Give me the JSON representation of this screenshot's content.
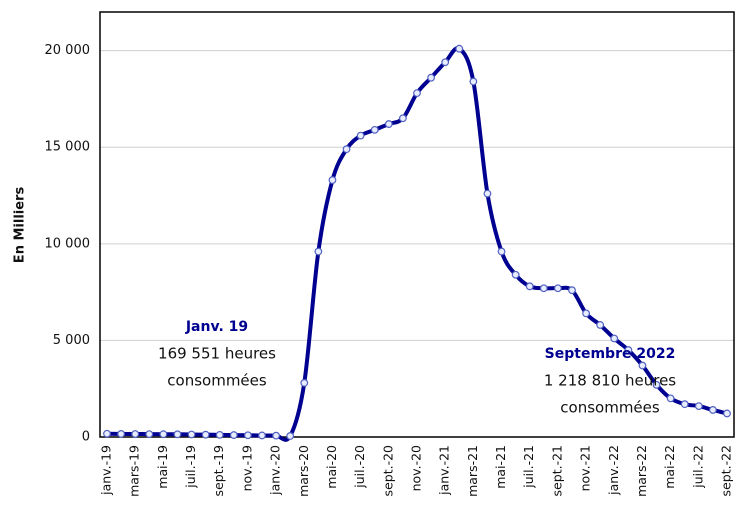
{
  "chart_data": {
    "type": "line",
    "y_label": "En Milliers",
    "categories": [
      "janv.-19",
      null,
      "mars-19",
      null,
      "mai-19",
      null,
      "juil.-19",
      null,
      "sept.-19",
      null,
      "nov.-19",
      null,
      "janv.-20",
      null,
      "mars-20",
      null,
      "mai-20",
      null,
      "juil.-20",
      null,
      "sept.-20",
      null,
      "nov.-20",
      null,
      "janv.-21",
      null,
      "mars-21",
      null,
      "mai-21",
      null,
      "juil.-21",
      null,
      "sept.-21",
      null,
      "nov.-21",
      null,
      "janv.-22",
      null,
      "mars-22",
      null,
      "mai-22",
      null,
      "juil.-22",
      null,
      "sept.-22"
    ],
    "values": [
      170,
      160,
      155,
      150,
      145,
      140,
      130,
      120,
      110,
      100,
      90,
      80,
      70,
      50,
      2800,
      9600,
      13300,
      14900,
      15600,
      15900,
      16200,
      16500,
      17800,
      18600,
      19400,
      20100,
      18400,
      12600,
      9600,
      8400,
      7800,
      7700,
      7700,
      7600,
      6400,
      5800,
      5100,
      4500,
      3700,
      2700,
      2000,
      1700,
      1600,
      1400,
      1219
    ],
    "color": "#000091",
    "ylim": [
      0,
      22000
    ],
    "yticks": [
      0,
      {
        "value": 5000,
        "label": "5 000"
      },
      {
        "value": 10000,
        "label": "10 000"
      },
      {
        "value": 15000,
        "label": "15 000"
      },
      {
        "value": 20000,
        "label": "20 000"
      }
    ],
    "grid": true,
    "annotations": [
      {
        "title": "Janv. 19",
        "lines": [
          "169 551 heures",
          "consommées"
        ]
      },
      {
        "title": "Septembre 2022",
        "lines": [
          "1 218 810 heures",
          "consommées"
        ]
      }
    ]
  }
}
